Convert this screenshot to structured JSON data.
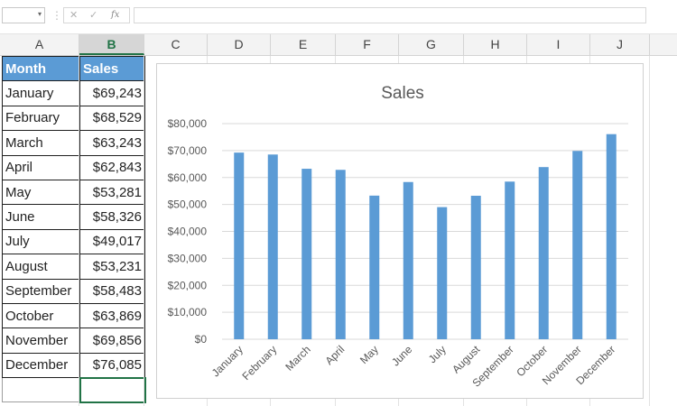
{
  "formula_bar": {
    "name_box_value": "",
    "dropdown_glyph": "▾",
    "separator_glyph": "⋮",
    "cancel_glyph": "✕",
    "enter_glyph": "✓",
    "fx_label": "fx",
    "formula_value": ""
  },
  "columns": [
    "A",
    "B",
    "C",
    "D",
    "E",
    "F",
    "G",
    "H",
    "I",
    "J"
  ],
  "selected_column": "B",
  "table": {
    "header": [
      "Month",
      "Sales"
    ],
    "rows": [
      [
        "January",
        "$69,243"
      ],
      [
        "February",
        "$68,529"
      ],
      [
        "March",
        "$63,243"
      ],
      [
        "April",
        "$62,843"
      ],
      [
        "May",
        "$53,281"
      ],
      [
        "June",
        "$58,326"
      ],
      [
        "July",
        "$49,017"
      ],
      [
        "August",
        "$53,231"
      ],
      [
        "September",
        "$58,483"
      ],
      [
        "October",
        "$63,869"
      ],
      [
        "November",
        "$69,856"
      ],
      [
        "December",
        "$76,085"
      ]
    ]
  },
  "colors": {
    "bar": "#5b9bd5",
    "header_fill": "#5b9bd5",
    "selection": "#217346",
    "gridline": "#d9d9d9"
  },
  "chart_data": {
    "type": "bar",
    "title": "Sales",
    "xlabel": "",
    "ylabel": "",
    "categories": [
      "January",
      "February",
      "March",
      "April",
      "May",
      "June",
      "July",
      "August",
      "September",
      "October",
      "November",
      "December"
    ],
    "values": [
      69243,
      68529,
      63243,
      62843,
      53281,
      58326,
      49017,
      53231,
      58483,
      63869,
      69856,
      76085
    ],
    "ylim": [
      0,
      80000
    ],
    "yticks": [
      0,
      10000,
      20000,
      30000,
      40000,
      50000,
      60000,
      70000,
      80000
    ],
    "ytick_labels": [
      "$0",
      "$10,000",
      "$20,000",
      "$30,000",
      "$40,000",
      "$50,000",
      "$60,000",
      "$70,000",
      "$80,000"
    ],
    "grid": true,
    "legend": "none"
  }
}
